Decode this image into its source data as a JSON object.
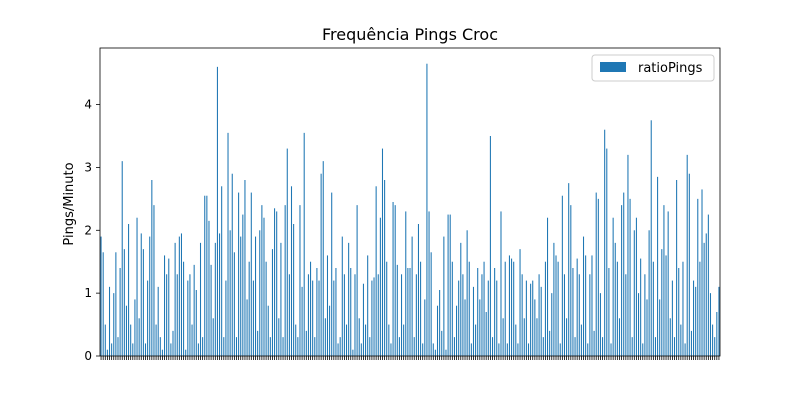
{
  "chart_data": {
    "type": "bar",
    "title": "Frequência Pings Croc",
    "xlabel": "",
    "ylabel": "Pings/Minuto",
    "ylim": [
      0,
      4.9
    ],
    "yticks": [
      "0",
      "1",
      "2",
      "3",
      "4"
    ],
    "grid": false,
    "legend_position": "top-right",
    "series": [
      {
        "name": "ratioPings",
        "color": "#1f77b4",
        "values": [
          1.9,
          1.65,
          0.5,
          0.1,
          1.1,
          0.2,
          1.0,
          1.65,
          0.3,
          1.4,
          3.1,
          1.7,
          0.8,
          2.1,
          0.5,
          0.2,
          0.9,
          2.2,
          0.6,
          1.95,
          1.7,
          0.2,
          1.2,
          1.9,
          2.8,
          2.4,
          0.5,
          1.1,
          0.3,
          0.1,
          1.6,
          1.3,
          1.55,
          0.2,
          0.4,
          1.8,
          1.3,
          1.9,
          1.95,
          1.5,
          0.1,
          1.2,
          1.3,
          0.5,
          1.45,
          1.05,
          0.2,
          1.8,
          0.3,
          2.55,
          2.55,
          2.15,
          1.45,
          0.6,
          1.8,
          4.6,
          1.95,
          2.7,
          0.3,
          1.2,
          3.55,
          2.0,
          2.9,
          1.65,
          0.3,
          2.6,
          1.9,
          2.25,
          2.8,
          0.9,
          1.5,
          2.6,
          1.2,
          1.9,
          0.4,
          2.0,
          2.4,
          2.2,
          1.5,
          0.8,
          0.3,
          1.7,
          2.35,
          2.3,
          0.6,
          1.8,
          0.3,
          2.4,
          3.3,
          1.3,
          2.7,
          2.1,
          0.5,
          0.3,
          2.4,
          1.1,
          3.55,
          0.4,
          1.3,
          1.5,
          1.2,
          0.3,
          1.4,
          1.2,
          2.9,
          3.1,
          0.6,
          1.6,
          0.8,
          2.6,
          1.2,
          1.4,
          0.2,
          0.3,
          1.9,
          1.3,
          0.5,
          1.8,
          1.4,
          0.1,
          1.3,
          2.4,
          0.6,
          0.2,
          1.15,
          0.5,
          1.6,
          0.3,
          1.2,
          1.25,
          2.7,
          1.3,
          2.2,
          3.3,
          2.8,
          1.5,
          0.5,
          0.2,
          2.45,
          2.4,
          1.45,
          0.3,
          1.3,
          0.5,
          2.3,
          1.4,
          1.4,
          1.9,
          0.3,
          1.3,
          2.1,
          1.5,
          0.2,
          0.9,
          4.65,
          2.3,
          1.65,
          0.2,
          0.1,
          0.8,
          1.05,
          0.4,
          1.9,
          0.1,
          2.25,
          2.25,
          1.5,
          0.3,
          0.8,
          1.2,
          1.8,
          1.3,
          0.9,
          2.0,
          1.5,
          0.2,
          1.1,
          0.5,
          1.4,
          0.9,
          1.3,
          1.5,
          0.7,
          1.2,
          3.5,
          0.3,
          1.4,
          1.2,
          0.2,
          2.3,
          0.6,
          1.5,
          0.2,
          1.6,
          1.55,
          1.5,
          0.5,
          0.2,
          1.7,
          1.3,
          0.6,
          1.2,
          0.2,
          1.15,
          1.2,
          0.9,
          0.6,
          1.3,
          1.1,
          0.3,
          1.5,
          2.2,
          0.4,
          1.0,
          1.8,
          1.6,
          1.5,
          0.2,
          2.55,
          1.3,
          0.6,
          2.75,
          2.4,
          1.4,
          0.3,
          1.55,
          1.3,
          0.5,
          1.9,
          1.6,
          0.2,
          1.3,
          1.6,
          0.4,
          2.6,
          2.5,
          1.0,
          0.3,
          3.6,
          3.3,
          1.4,
          0.2,
          2.2,
          1.8,
          1.5,
          0.6,
          2.4,
          2.6,
          1.3,
          3.2,
          2.5,
          0.3,
          2.0,
          2.2,
          1.0,
          1.55,
          0.2,
          1.3,
          0.9,
          2.0,
          3.75,
          1.5,
          0.3,
          2.85,
          0.9,
          1.7,
          2.4,
          1.6,
          2.3,
          0.6,
          1.2,
          0.3,
          2.8,
          1.4,
          0.5,
          1.5,
          0.2,
          3.2,
          2.9,
          0.4,
          1.2,
          1.1,
          2.5,
          1.5,
          2.65,
          1.8,
          1.95,
          2.25,
          1.0,
          0.5,
          0.3,
          0.7,
          1.1
        ]
      }
    ]
  }
}
